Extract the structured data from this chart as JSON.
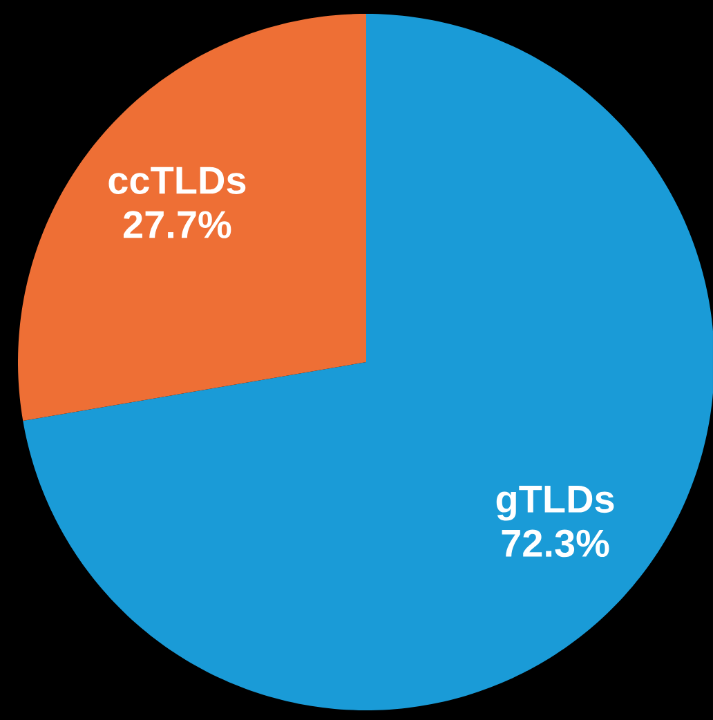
{
  "chart_data": {
    "type": "pie",
    "categories": [
      "gTLDs",
      "ccTLDs"
    ],
    "values": [
      72.3,
      27.7
    ],
    "colors": [
      "#1a9bd7",
      "#ee6f35"
    ],
    "value_labels": [
      "72.3%",
      "27.7%"
    ]
  }
}
